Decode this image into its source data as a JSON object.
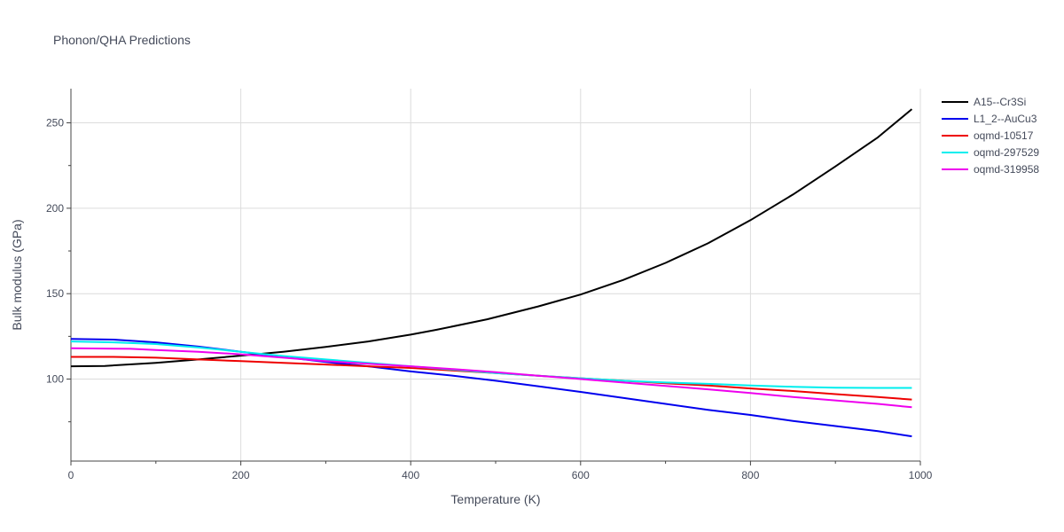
{
  "chart_data": {
    "type": "line",
    "title": "Phonon/QHA Predictions",
    "xlabel": "Temperature (K)",
    "ylabel": "Bulk modulus (GPa)",
    "xlim": [
      0,
      1000
    ],
    "ylim": [
      52,
      270
    ],
    "x_ticks": [
      0,
      200,
      400,
      600,
      800,
      1000
    ],
    "y_ticks": [
      100,
      150,
      200,
      250
    ],
    "grid": true,
    "legend": "right",
    "series": [
      {
        "name": "A15--Cr3Si",
        "color": "#000000",
        "points": [
          [
            0,
            107.5
          ],
          [
            40,
            107.7
          ],
          [
            100,
            109.5
          ],
          [
            150,
            111.5
          ],
          [
            200,
            113.7
          ],
          [
            250,
            116
          ],
          [
            300,
            118.8
          ],
          [
            350,
            122
          ],
          [
            400,
            126
          ],
          [
            430,
            128.8
          ],
          [
            490,
            135
          ],
          [
            550,
            142.5
          ],
          [
            600,
            149.5
          ],
          [
            650,
            158
          ],
          [
            700,
            168
          ],
          [
            750,
            179.5
          ],
          [
            800,
            193
          ],
          [
            850,
            208
          ],
          [
            900,
            224.5
          ],
          [
            950,
            241.5
          ],
          [
            990,
            258
          ]
        ]
      },
      {
        "name": "L1_2--AuCu3",
        "color": "#0000ee",
        "points": [
          [
            0,
            123.5
          ],
          [
            50,
            123.1
          ],
          [
            100,
            121.5
          ],
          [
            150,
            119
          ],
          [
            200,
            116
          ],
          [
            250,
            113
          ],
          [
            300,
            110
          ],
          [
            350,
            107.5
          ],
          [
            400,
            104.5
          ],
          [
            450,
            102
          ],
          [
            500,
            99
          ],
          [
            550,
            95.8
          ],
          [
            600,
            92.5
          ],
          [
            650,
            89
          ],
          [
            700,
            85.5
          ],
          [
            750,
            82
          ],
          [
            800,
            79
          ],
          [
            850,
            75.5
          ],
          [
            900,
            72.5
          ],
          [
            950,
            69.5
          ],
          [
            990,
            66.5
          ]
        ]
      },
      {
        "name": "oqmd-10517",
        "color": "#ee0000",
        "points": [
          [
            0,
            113
          ],
          [
            50,
            113
          ],
          [
            100,
            112.5
          ],
          [
            150,
            111.5
          ],
          [
            200,
            110.5
          ],
          [
            250,
            109.5
          ],
          [
            300,
            108.5
          ],
          [
            350,
            107.5
          ],
          [
            400,
            106.5
          ],
          [
            450,
            105
          ],
          [
            500,
            103.5
          ],
          [
            550,
            102
          ],
          [
            600,
            100.5
          ],
          [
            650,
            99
          ],
          [
            700,
            97.5
          ],
          [
            750,
            96.2
          ],
          [
            800,
            94.5
          ],
          [
            850,
            93
          ],
          [
            900,
            91.2
          ],
          [
            950,
            89.5
          ],
          [
            990,
            88
          ]
        ]
      },
      {
        "name": "oqmd-297529",
        "color": "#00eeee",
        "points": [
          [
            0,
            122
          ],
          [
            50,
            121.5
          ],
          [
            100,
            120.5
          ],
          [
            150,
            118.5
          ],
          [
            200,
            116
          ],
          [
            250,
            113.5
          ],
          [
            300,
            111.5
          ],
          [
            350,
            109.5
          ],
          [
            400,
            107.5
          ],
          [
            450,
            105.5
          ],
          [
            500,
            103.5
          ],
          [
            550,
            102
          ],
          [
            600,
            100.5
          ],
          [
            650,
            99
          ],
          [
            700,
            98
          ],
          [
            750,
            97.2
          ],
          [
            800,
            96.2
          ],
          [
            850,
            95.5
          ],
          [
            900,
            95
          ],
          [
            950,
            94.8
          ],
          [
            990,
            94.8
          ]
        ]
      },
      {
        "name": "oqmd-319958",
        "color": "#ee00ee",
        "points": [
          [
            0,
            118
          ],
          [
            70,
            117.7
          ],
          [
            100,
            117
          ],
          [
            150,
            116
          ],
          [
            200,
            114.5
          ],
          [
            250,
            112.5
          ],
          [
            300,
            110.5
          ],
          [
            350,
            109
          ],
          [
            400,
            107.5
          ],
          [
            450,
            105.8
          ],
          [
            500,
            104
          ],
          [
            550,
            102
          ],
          [
            600,
            100
          ],
          [
            650,
            98
          ],
          [
            700,
            96
          ],
          [
            750,
            94
          ],
          [
            800,
            91.8
          ],
          [
            850,
            89.5
          ],
          [
            900,
            87.5
          ],
          [
            950,
            85.5
          ],
          [
            990,
            83.5
          ]
        ]
      }
    ]
  }
}
